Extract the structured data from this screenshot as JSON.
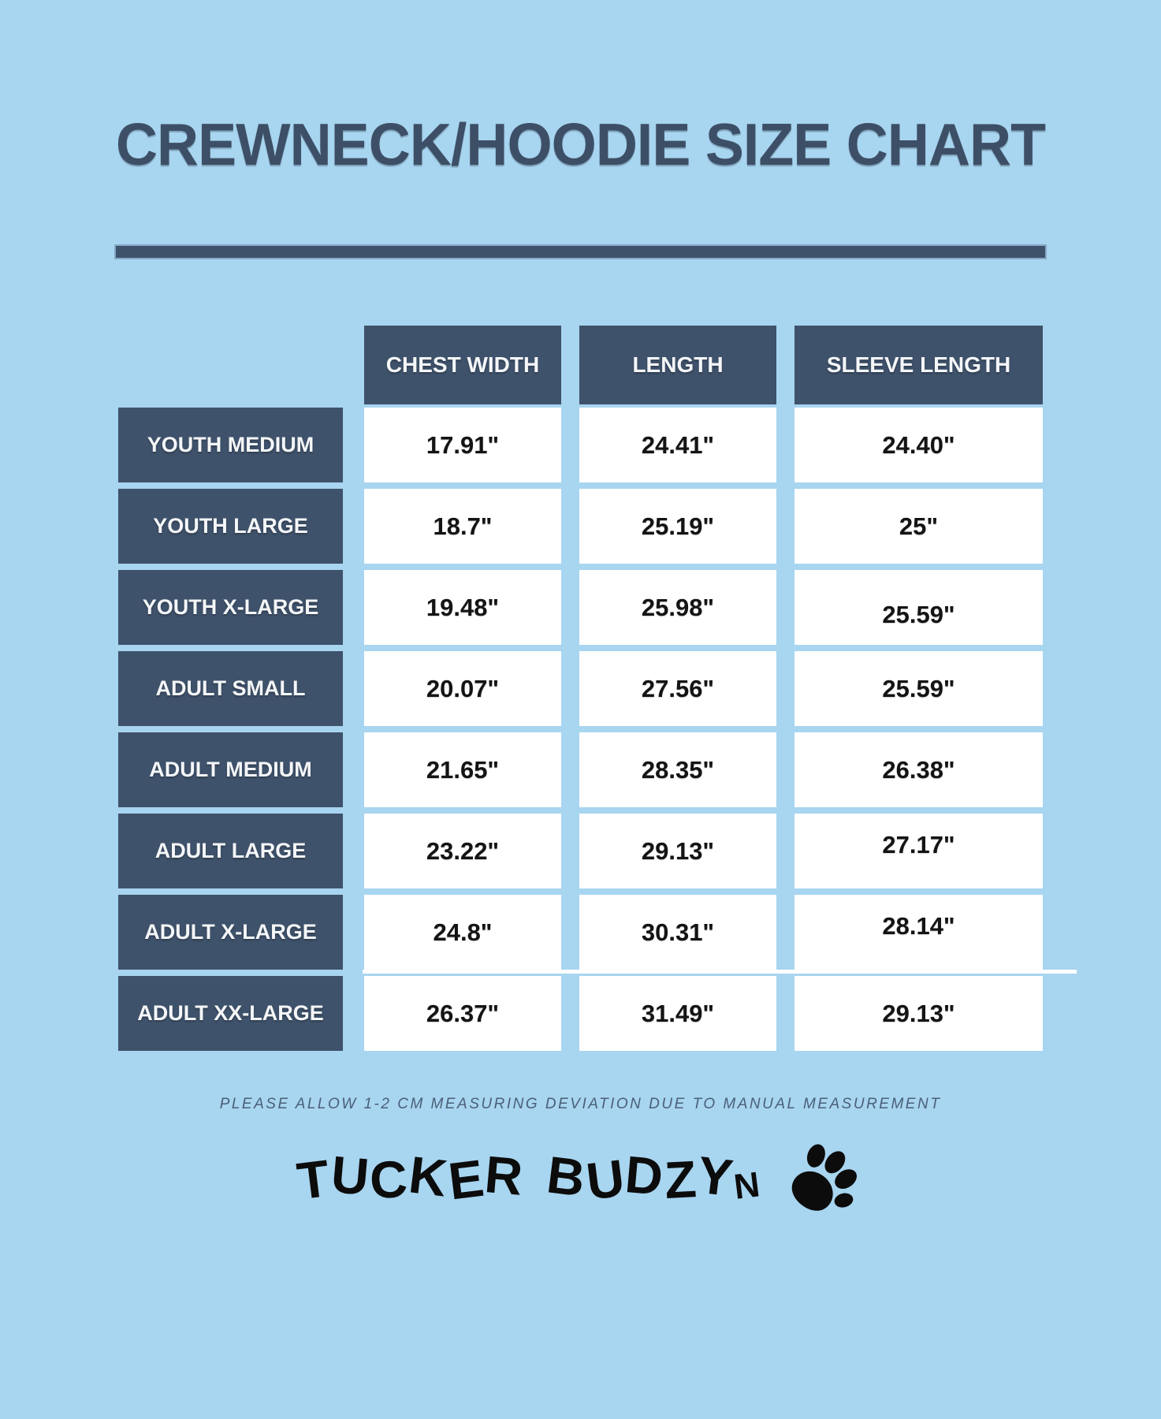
{
  "page": {
    "title": "CREWNECK/HOODIE SIZE CHART",
    "note": "PLEASE ALLOW 1-2 CM MEASURING DEVIATION DUE TO MANUAL MEASUREMENT",
    "brand": "TUCKER BUDZYN",
    "brand_icon": "paw-print-icon"
  },
  "colors": {
    "background": "#a8d5f0",
    "navy_cell": "#3f526b",
    "title_text": "#3d4f66",
    "value_text": "#141414",
    "header_text": "#f4f6f8",
    "note_text": "#4a6078",
    "logo_black": "#0c0c0c"
  },
  "chart_data": {
    "type": "table",
    "title": "CREWNECK/HOODIE SIZE CHART",
    "columns": [
      "CHEST WIDTH",
      "LENGTH",
      "SLEEVE LENGTH"
    ],
    "units": "inches",
    "rows": [
      {
        "label": "YOUTH MEDIUM",
        "chest_width": "17.91\"",
        "length": "24.41\"",
        "sleeve_length": "24.40\""
      },
      {
        "label": "YOUTH LARGE",
        "chest_width": "18.7\"",
        "length": "25.19\"",
        "sleeve_length": "25\""
      },
      {
        "label": "YOUTH X-LARGE",
        "chest_width": "19.48\"",
        "length": "25.98\"",
        "sleeve_length": "25.59\""
      },
      {
        "label": "ADULT SMALL",
        "chest_width": "20.07\"",
        "length": "27.56\"",
        "sleeve_length": "25.59\""
      },
      {
        "label": "ADULT MEDIUM",
        "chest_width": "21.65\"",
        "length": "28.35\"",
        "sleeve_length": "26.38\""
      },
      {
        "label": "ADULT LARGE",
        "chest_width": "23.22\"",
        "length": "29.13\"",
        "sleeve_length": "27.17\""
      },
      {
        "label": "ADULT X-LARGE",
        "chest_width": "24.8\"",
        "length": "30.31\"",
        "sleeve_length": "28.14\""
      },
      {
        "label": "ADULT XX-LARGE",
        "chest_width": "26.37\"",
        "length": "31.49\"",
        "sleeve_length": "29.13\""
      }
    ]
  }
}
